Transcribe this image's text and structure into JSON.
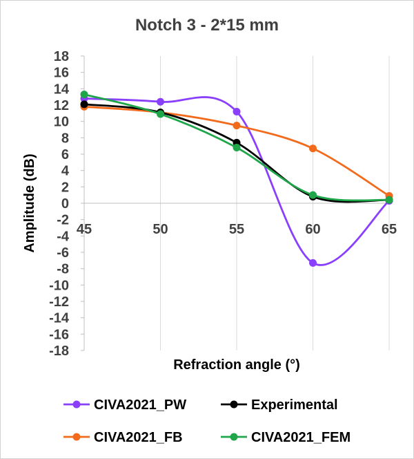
{
  "chart_data": {
    "type": "line",
    "title": "Notch 3 - 2*15 mm",
    "xlabel": "Refraction angle (°)",
    "ylabel": "Amplitude (dB)",
    "x": [
      45,
      50,
      55,
      60,
      65
    ],
    "x_tick_labels": [
      "45",
      "50",
      "55",
      "60",
      "65"
    ],
    "xlim": [
      45,
      65
    ],
    "ylim": [
      -18,
      18
    ],
    "y_ticks": [
      18,
      16,
      14,
      12,
      10,
      8,
      6,
      4,
      2,
      0,
      -2,
      -4,
      -6,
      -8,
      -10,
      -12,
      -14,
      -16,
      -18
    ],
    "y_tick_labels": [
      "18",
      "16",
      "14",
      "12",
      "10",
      "8",
      "6",
      "4",
      "2",
      "0",
      "-2",
      "-4",
      "-6",
      "-8",
      "-10",
      "-12",
      "-14",
      "-16",
      "-18"
    ],
    "grid": "vertical",
    "legend_position": "bottom",
    "series": [
      {
        "name": "CIVA2021_PW",
        "color": "#8a3ffc",
        "values": [
          12.8,
          12.4,
          11.2,
          -7.3,
          0.3
        ]
      },
      {
        "name": "Experimental",
        "color": "#000000",
        "values": [
          12.1,
          11.1,
          7.4,
          0.8,
          0.4
        ]
      },
      {
        "name": "CIVA2021_FB",
        "color": "#f26b1d",
        "values": [
          11.8,
          11.1,
          9.5,
          6.7,
          0.9
        ]
      },
      {
        "name": "CIVA2021_FEM",
        "color": "#1fa64a",
        "values": [
          13.3,
          10.9,
          6.8,
          1.0,
          0.4
        ]
      }
    ]
  }
}
